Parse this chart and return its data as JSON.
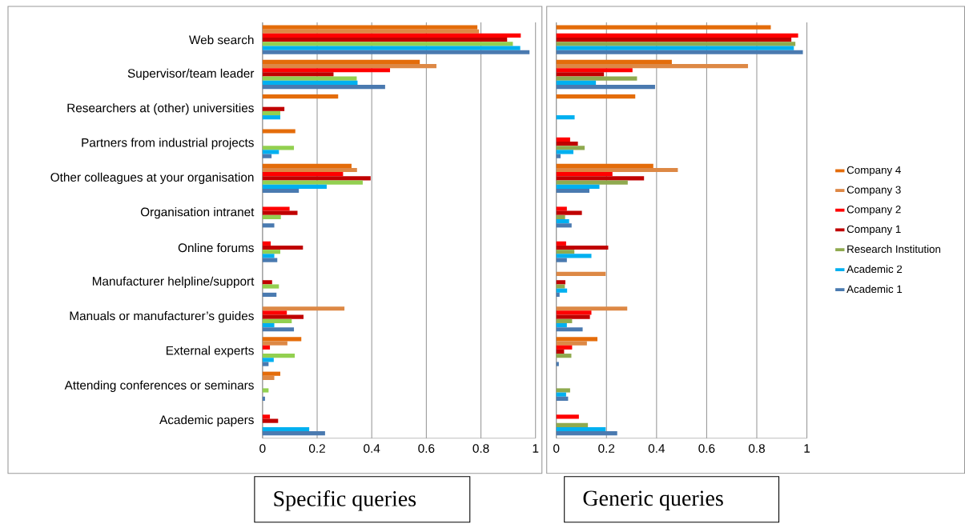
{
  "chart_data": [
    {
      "type": "bar",
      "orientation": "horizontal",
      "title": "Specific queries",
      "categories": [
        "Web search",
        "Supervisor/team leader",
        "Researchers at (other) universities",
        "Partners from industrial projects",
        "Other colleagues at your organisation",
        "Organisation intranet",
        "Online forums",
        "Manufacturer helpline/support",
        "Manuals or manufacturer’s guides",
        "External experts",
        "Attending conferences or seminars",
        "Academic papers"
      ],
      "series": [
        {
          "color": "#e46c0a",
          "values": [
            0.787,
            0.576,
            0.277,
            0.12,
            0.326,
            null,
            null,
            null,
            null,
            0.142,
            0.065,
            null
          ]
        },
        {
          "color": "#dd8845",
          "values": [
            0.793,
            0.637,
            null,
            null,
            0.346,
            null,
            null,
            null,
            0.3,
            0.091,
            0.043,
            null
          ]
        },
        {
          "color": "#ff0000",
          "values": [
            0.946,
            0.467,
            null,
            null,
            0.295,
            0.099,
            0.03,
            null,
            0.089,
            0.027,
            null,
            0.027
          ]
        },
        {
          "color": "#c00000",
          "values": [
            0.896,
            0.26,
            0.08,
            null,
            0.396,
            0.128,
            0.148,
            0.035,
            0.15,
            null,
            null,
            0.057
          ]
        },
        {
          "color": "#92d050",
          "values": [
            0.917,
            0.345,
            0.065,
            0.115,
            0.367,
            0.067,
            0.065,
            0.06,
            0.107,
            0.118,
            0.022,
            null
          ]
        },
        {
          "color": "#00b0f0",
          "values": [
            0.944,
            0.348,
            0.065,
            0.06,
            0.235,
            null,
            0.043,
            null,
            0.043,
            0.041,
            null,
            0.171
          ]
        },
        {
          "color": "#4a7ab0",
          "values": [
            0.978,
            0.449,
            null,
            0.033,
            0.133,
            0.043,
            0.054,
            0.051,
            0.115,
            0.022,
            0.009,
            0.229
          ]
        }
      ],
      "xlim": [
        0,
        1
      ],
      "xticks": [
        0,
        0.2,
        0.4,
        0.6,
        0.8,
        1
      ],
      "grid": "x"
    },
    {
      "type": "bar",
      "orientation": "horizontal",
      "title": "Generic queries",
      "categories": [
        null,
        null,
        null,
        null,
        null,
        null,
        null,
        null,
        null,
        null,
        null,
        null
      ],
      "series": [
        {
          "name": "Company 4",
          "color": "#e46c0a",
          "values": [
            0.856,
            0.461,
            0.315,
            null,
            0.387,
            null,
            null,
            null,
            null,
            0.164,
            null,
            null
          ]
        },
        {
          "name": "Company 3",
          "color": "#dd8845",
          "values": [
            null,
            0.765,
            null,
            null,
            0.485,
            null,
            null,
            0.197,
            0.283,
            0.122,
            null,
            null
          ]
        },
        {
          "name": "Company 2",
          "color": "#ff0000",
          "values": [
            0.965,
            0.304,
            null,
            0.055,
            0.224,
            0.042,
            0.039,
            null,
            0.14,
            0.063,
            null,
            0.09
          ]
        },
        {
          "name": "Company 1",
          "color": "#c00000",
          "values": [
            0.938,
            0.19,
            null,
            0.086,
            0.35,
            0.102,
            0.207,
            0.036,
            0.134,
            0.031,
            null,
            null
          ]
        },
        {
          "name": "Research Institution",
          "color": "#8faa4f",
          "values": [
            0.954,
            0.322,
            null,
            0.113,
            0.285,
            0.035,
            0.072,
            0.034,
            0.063,
            0.06,
            0.055,
            0.126
          ]
        },
        {
          "name": "Academic 2",
          "color": "#00b0f0",
          "values": [
            0.948,
            0.158,
            0.073,
            0.068,
            0.172,
            0.051,
            0.14,
            0.043,
            0.042,
            null,
            0.039,
            0.197
          ]
        },
        {
          "name": "Academic 1",
          "color": "#4a7ab0",
          "values": [
            0.984,
            0.394,
            null,
            0.017,
            0.132,
            0.061,
            0.042,
            0.013,
            0.105,
            0.01,
            0.047,
            0.243
          ]
        }
      ],
      "xlim": [
        0,
        1
      ],
      "xticks": [
        0,
        0.2,
        0.4,
        0.6,
        0.8,
        1
      ],
      "grid": "x",
      "legend": "right"
    }
  ]
}
